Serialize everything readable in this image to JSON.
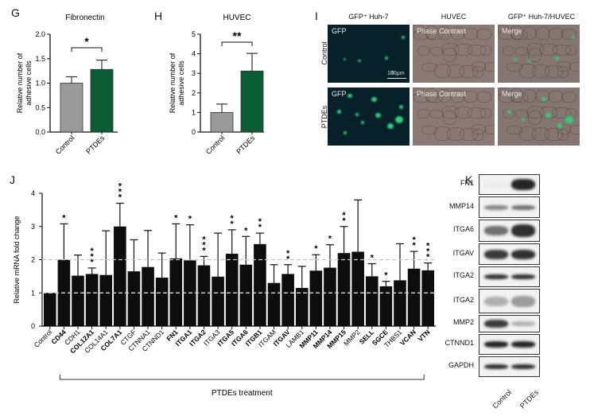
{
  "panels": {
    "G": "G",
    "H": "H",
    "I": "I",
    "J": "J",
    "K": "K"
  },
  "chart_data": [
    {
      "id": "G",
      "type": "bar",
      "title": "Fibronectin",
      "ylabel": "Relative number of adhesive cells",
      "ylabel_lines": [
        "Relative number of",
        "adhesive cells"
      ],
      "categories": [
        "Control",
        "PTDEs"
      ],
      "values": [
        1.0,
        1.28
      ],
      "errors_upper": [
        1.13,
        1.47
      ],
      "colors": [
        "#9a9a9a",
        "#0b5e33"
      ],
      "ylim": [
        0,
        2.0
      ],
      "yticks": [
        "0.0",
        "0.5",
        "1.0",
        "1.5",
        "2.0"
      ],
      "significance": "*"
    },
    {
      "id": "H",
      "type": "bar",
      "title": "HUVEC",
      "ylabel": "Relative number of adhesive cells",
      "ylabel_lines": [
        "Relative number of",
        "adhesive cells"
      ],
      "categories": [
        "Control",
        "PTDEs"
      ],
      "values": [
        1.0,
        3.12
      ],
      "errors_upper": [
        1.43,
        4.02
      ],
      "colors": [
        "#9a9a9a",
        "#0b5e33"
      ],
      "ylim": [
        0,
        5
      ],
      "yticks": [
        "0",
        "1",
        "2",
        "3",
        "4",
        "5"
      ],
      "significance": "**"
    },
    {
      "id": "J",
      "type": "bar",
      "title": "",
      "ylabel": "Relative mRNA fold change",
      "xlabel": "PTDEs treatment",
      "ylim": [
        0,
        4
      ],
      "yticks": [
        "0",
        "1",
        "2",
        "3",
        "4"
      ],
      "reference_lines": [
        1,
        2
      ],
      "categories": [
        "Control",
        "CD44",
        "CDH1",
        "COL12A1",
        "COL14A1",
        "COL7A1",
        "CTGF",
        "CTNNA1",
        "CTNND1",
        "FN1",
        "ITGA1",
        "ITGA2",
        "ITGA3",
        "ITGA5",
        "ITGA6",
        "ITGB1",
        "ITGAM",
        "ITGAV",
        "LAMB1",
        "MMP11",
        "MMP14",
        "MMP15",
        "MMP2",
        "SELL",
        "SGCE",
        "THBS1",
        "VCAN",
        "VTN"
      ],
      "bold": [
        false,
        true,
        false,
        true,
        false,
        true,
        false,
        false,
        false,
        true,
        true,
        true,
        false,
        true,
        true,
        true,
        false,
        true,
        false,
        true,
        true,
        true,
        false,
        true,
        true,
        false,
        true,
        true
      ],
      "values": [
        1.0,
        2.0,
        1.52,
        1.57,
        1.54,
        3.0,
        1.65,
        1.78,
        1.46,
        2.04,
        1.98,
        1.83,
        1.49,
        2.18,
        1.85,
        2.47,
        1.3,
        1.57,
        1.15,
        1.67,
        1.76,
        2.2,
        2.24,
        1.5,
        1.2,
        1.38,
        1.73,
        1.68
      ],
      "errors_upper": [
        1.0,
        3.08,
        2.14,
        1.75,
        2.87,
        3.7,
        2.6,
        2.88,
        2.2,
        3.08,
        3.05,
        2.1,
        2.8,
        2.9,
        2.7,
        2.8,
        1.85,
        1.85,
        1.8,
        2.15,
        2.45,
        3.0,
        3.8,
        1.88,
        1.35,
        2.48,
        2.25,
        1.9
      ],
      "significance": [
        "",
        "*",
        "",
        "***",
        "",
        "***",
        "",
        "",
        "",
        "*",
        "*",
        "***",
        "",
        "**",
        "*",
        "**",
        "",
        "**",
        "",
        "*",
        "*",
        "**",
        "",
        "*",
        "*",
        "",
        "**",
        "***"
      ],
      "color": "#0d0d0d"
    }
  ],
  "microscopy": {
    "columns": [
      "GFP⁺ Huh-7",
      "HUVEC",
      "GFP⁺ Huh-7/HUVEC"
    ],
    "rows": [
      "Control",
      "PTDEs"
    ],
    "tile_labels": [
      "GFP",
      "Phase Contrast",
      "Merge"
    ],
    "scale_bar": "100μm"
  },
  "western_blot": {
    "rows": [
      "FN1",
      "MMP14",
      "ITGA6",
      "ITGAV",
      "ITGA2",
      "ITGA2",
      "MMP2",
      "CTNND1",
      "GAPDH"
    ],
    "lanes": [
      "Control",
      "PTDEs"
    ]
  }
}
